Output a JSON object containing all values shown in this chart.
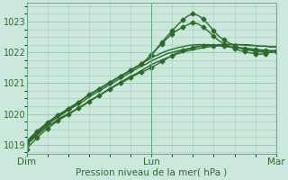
{
  "xlabel": "Pression niveau de la mer( hPa )",
  "ylim": [
    1018.7,
    1023.6
  ],
  "xlim": [
    0,
    48
  ],
  "yticks": [
    1019,
    1020,
    1021,
    1022,
    1023
  ],
  "xtick_positions": [
    0,
    24,
    48
  ],
  "xtick_labels": [
    "Dim",
    "Lun",
    "Mar"
  ],
  "bg_color": "#cce8dc",
  "grid_color": "#99ccb8",
  "line_color": "#2d6a2d",
  "series": [
    {
      "y": [
        1019.0,
        1019.15,
        1019.3,
        1019.45,
        1019.6,
        1019.7,
        1019.82,
        1019.92,
        1020.0,
        1020.1,
        1020.2,
        1020.3,
        1020.42,
        1020.52,
        1020.6,
        1020.72,
        1020.82,
        1020.92,
        1021.02,
        1021.12,
        1021.22,
        1021.3,
        1021.4,
        1021.5,
        1021.6,
        1021.68,
        1021.75,
        1021.82,
        1021.88,
        1021.95,
        1022.0,
        1022.05,
        1022.08,
        1022.12,
        1022.15,
        1022.18,
        1022.2,
        1022.22,
        1022.24,
        1022.25,
        1022.25,
        1022.25,
        1022.24,
        1022.22,
        1022.22,
        1022.2,
        1022.2,
        1022.18,
        1022.18
      ],
      "markers": false,
      "lw": 1.0
    },
    {
      "y": [
        1019.0,
        1019.18,
        1019.35,
        1019.5,
        1019.65,
        1019.78,
        1019.9,
        1020.0,
        1020.12,
        1020.22,
        1020.32,
        1020.42,
        1020.55,
        1020.65,
        1020.75,
        1020.85,
        1020.95,
        1021.05,
        1021.15,
        1021.25,
        1021.35,
        1021.45,
        1021.55,
        1021.62,
        1021.72,
        1021.8,
        1021.88,
        1021.95,
        1022.0,
        1022.05,
        1022.08,
        1022.12,
        1022.15,
        1022.18,
        1022.2,
        1022.22,
        1022.24,
        1022.25,
        1022.26,
        1022.26,
        1022.26,
        1022.25,
        1022.25,
        1022.24,
        1022.22,
        1022.2,
        1022.2,
        1022.18,
        1022.18
      ],
      "markers": false,
      "lw": 1.0
    },
    {
      "y": [
        1019.0,
        1019.2,
        1019.38,
        1019.55,
        1019.7,
        1019.83,
        1019.95,
        1020.05,
        1020.17,
        1020.28,
        1020.38,
        1020.5,
        1020.62,
        1020.72,
        1020.82,
        1020.92,
        1021.02,
        1021.12,
        1021.22,
        1021.32,
        1021.42,
        1021.52,
        1021.62,
        1021.72,
        1021.82,
        1021.9,
        1021.98,
        1022.05,
        1022.1,
        1022.15,
        1022.18,
        1022.22,
        1022.24,
        1022.25,
        1022.25,
        1022.25,
        1022.24,
        1022.22,
        1022.2,
        1022.18,
        1022.16,
        1022.15,
        1022.14,
        1022.12,
        1022.1,
        1022.08,
        1022.07,
        1022.06,
        1022.06
      ],
      "markers": false,
      "lw": 1.0
    },
    {
      "y": [
        1018.85,
        1019.05,
        1019.22,
        1019.38,
        1019.52,
        1019.65,
        1019.77,
        1019.88,
        1019.98,
        1020.08,
        1020.18,
        1020.28,
        1020.4,
        1020.5,
        1020.6,
        1020.7,
        1020.8,
        1020.9,
        1021.0,
        1021.08,
        1021.18,
        1021.27,
        1021.35,
        1021.42,
        1021.5,
        1021.6,
        1021.7,
        1021.8,
        1021.9,
        1022.0,
        1022.05,
        1022.1,
        1022.15,
        1022.2,
        1022.2,
        1022.22,
        1022.22,
        1022.22,
        1022.2,
        1022.18,
        1022.16,
        1022.14,
        1022.12,
        1022.1,
        1022.08,
        1022.06,
        1022.05,
        1022.04,
        1022.04
      ],
      "markers": true,
      "lw": 1.0
    },
    {
      "y": [
        1019.1,
        1019.28,
        1019.44,
        1019.58,
        1019.72,
        1019.84,
        1019.96,
        1020.06,
        1020.17,
        1020.27,
        1020.38,
        1020.5,
        1020.62,
        1020.72,
        1020.82,
        1020.92,
        1021.02,
        1021.12,
        1021.22,
        1021.32,
        1021.42,
        1021.52,
        1021.62,
        1021.75,
        1021.92,
        1022.12,
        1022.32,
        1022.52,
        1022.7,
        1022.88,
        1023.05,
        1023.18,
        1023.25,
        1023.2,
        1023.08,
        1022.9,
        1022.7,
        1022.52,
        1022.4,
        1022.3,
        1022.22,
        1022.14,
        1022.1,
        1022.06,
        1022.04,
        1022.02,
        1022.0,
        1022.0,
        1022.02
      ],
      "markers": true,
      "lw": 1.0
    },
    {
      "y": [
        1019.05,
        1019.25,
        1019.42,
        1019.57,
        1019.7,
        1019.83,
        1019.95,
        1020.05,
        1020.16,
        1020.27,
        1020.38,
        1020.5,
        1020.62,
        1020.72,
        1020.82,
        1020.92,
        1021.02,
        1021.12,
        1021.22,
        1021.32,
        1021.42,
        1021.52,
        1021.62,
        1021.75,
        1021.92,
        1022.1,
        1022.28,
        1022.45,
        1022.6,
        1022.72,
        1022.82,
        1022.9,
        1022.96,
        1022.92,
        1022.82,
        1022.68,
        1022.52,
        1022.38,
        1022.28,
        1022.2,
        1022.12,
        1022.06,
        1022.02,
        1021.98,
        1021.96,
        1021.94,
        1021.96,
        1022.0,
        1022.04
      ],
      "markers": true,
      "lw": 1.0
    }
  ]
}
